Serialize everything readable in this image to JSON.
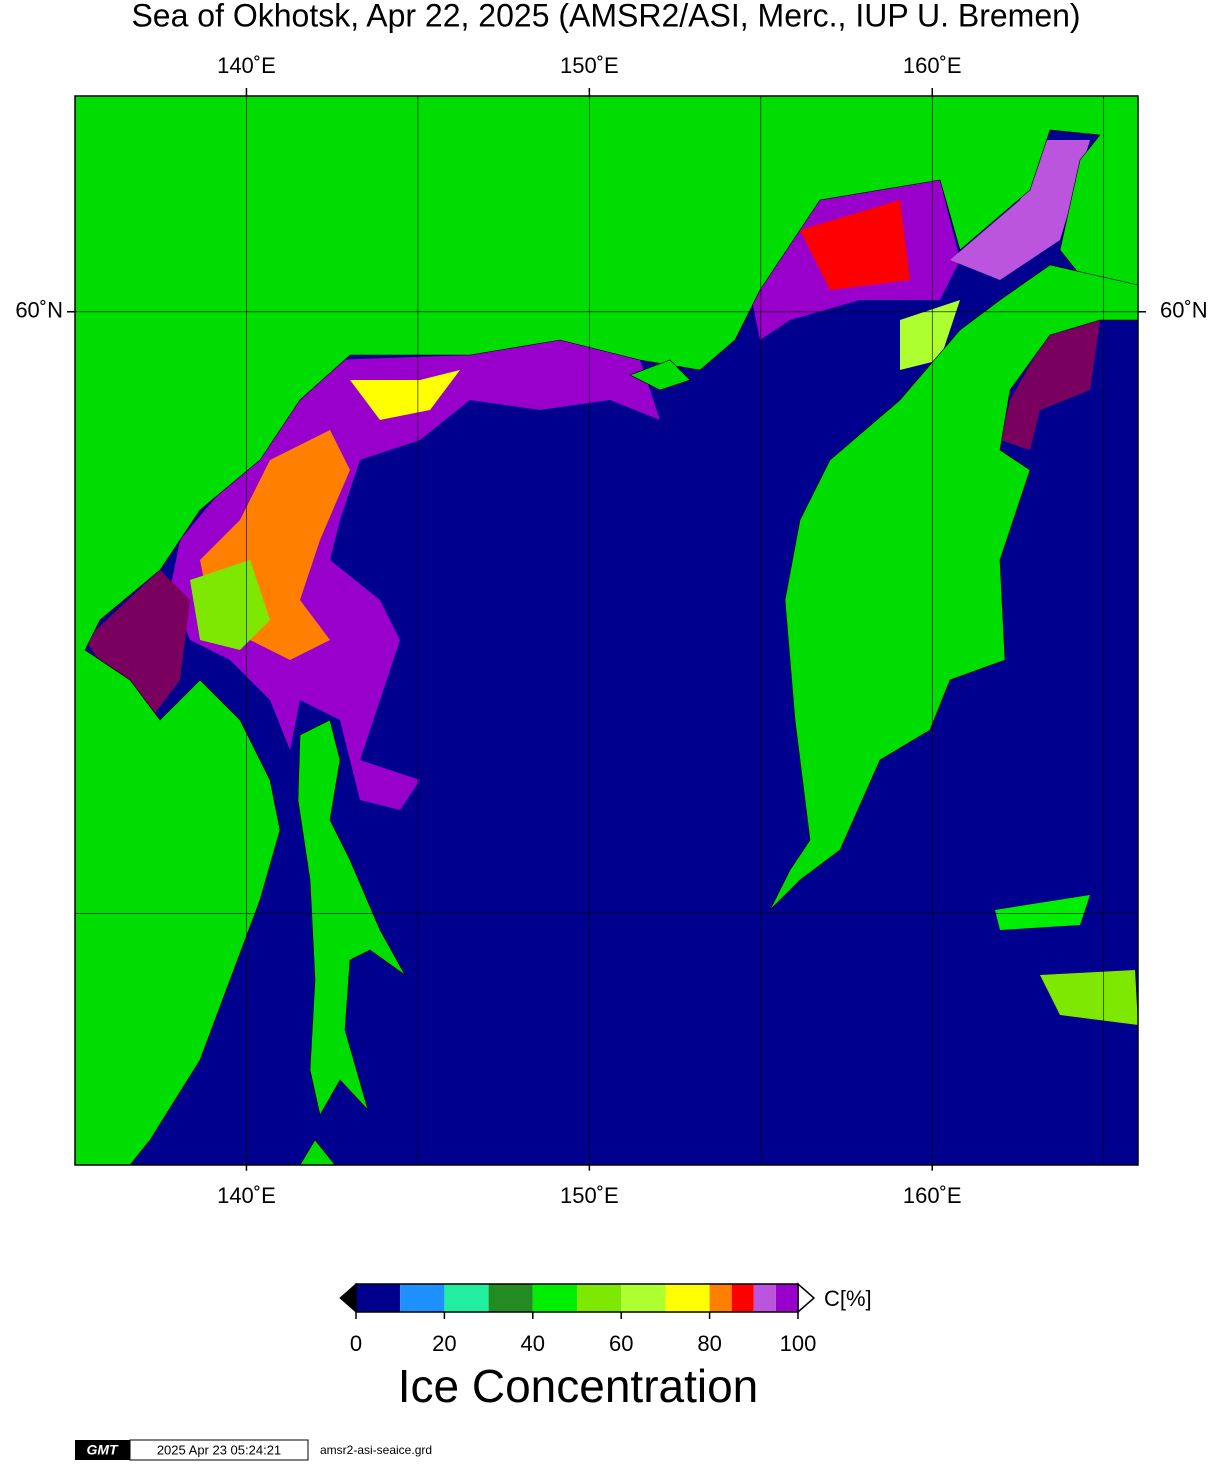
{
  "map": {
    "title": "Sea of Okhotsk, Apr 22, 2025 (AMSR2/ASI, Merc., IUP U. Bremen)",
    "lonlim": [
      135,
      166
    ],
    "latlim": [
      45.1,
      63.0
    ],
    "grid_lon": [
      140,
      145,
      150,
      155,
      160,
      165
    ],
    "grid_lat": [
      50,
      60
    ],
    "lon_ticks": [
      {
        "value": 140,
        "label": "140˚E"
      },
      {
        "value": 150,
        "label": "150˚E"
      },
      {
        "value": 160,
        "label": "160˚E"
      }
    ],
    "lat_ticks": [
      {
        "value": 60,
        "label": "60˚N"
      }
    ]
  },
  "colorbar": {
    "lim": [
      0,
      100
    ],
    "bounds": [
      0,
      10,
      20,
      30,
      40,
      50,
      60,
      70,
      80,
      85,
      90,
      95,
      100
    ],
    "colors": [
      "#00008e",
      "#1e90ff",
      "#22eea0",
      "#228b22",
      "#00ee00",
      "#7ee800",
      "#adff2f",
      "#ffff00",
      "#ff8000",
      "#ff0000",
      "#bb55dd",
      "#9900cc"
    ],
    "ticks": [
      0,
      20,
      40,
      60,
      80,
      100
    ],
    "unit_label": "C[%]",
    "title": "Ice Concentration"
  },
  "footer": {
    "logo": "GMT",
    "timestamp": "2025 Apr 23 05:24:21",
    "file": "amsr2-asi-seaice.grd"
  }
}
